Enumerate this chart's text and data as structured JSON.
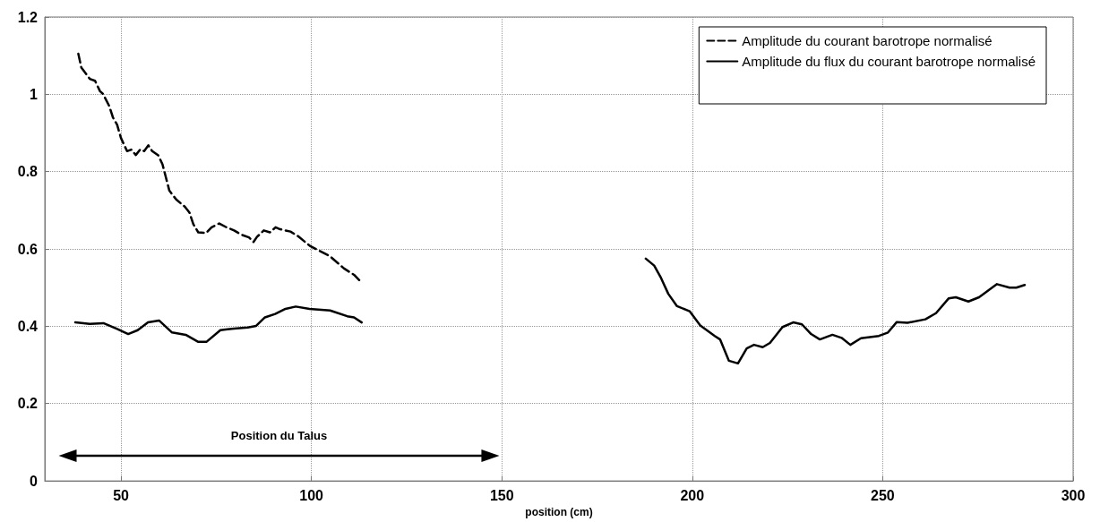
{
  "chart_data": {
    "type": "line",
    "xlabel": "position (cm)",
    "xlim": [
      30,
      300
    ],
    "xticks": [
      50,
      100,
      150,
      200,
      250,
      300
    ],
    "ylim": [
      0,
      1.2
    ],
    "yticks": [
      0,
      0.2,
      0.4,
      0.6,
      0.8,
      1,
      1.2
    ],
    "grid": true,
    "legend": "top right",
    "marker": "none",
    "annotations": [
      "Position du Talus"
    ],
    "series": [
      {
        "name": "Amplitude du courant barotrope normalisé",
        "color": "#000000",
        "line_style": "dashed",
        "x": [
          38.8,
          39.6,
          41.8,
          43.2,
          44.5,
          45.3,
          46.9,
          47.9,
          49.0,
          50.0,
          51.6,
          52.7,
          53.9,
          55.1,
          56.1,
          57.2,
          58.2,
          59.8,
          60.9,
          61.7,
          62.7,
          64.5,
          66.8,
          68.0,
          69.0,
          70.3,
          72.3,
          73.8,
          75.8,
          77.7,
          79.7,
          81.6,
          83.6,
          84.8,
          85.7,
          87.5,
          89.1,
          90.6,
          91.8,
          94.5,
          96.5,
          99.6,
          104.9,
          108.5,
          111.2,
          113.2
        ],
        "values": [
          1.105,
          1.069,
          1.04,
          1.035,
          1.008,
          1.001,
          0.97,
          0.94,
          0.921,
          0.887,
          0.853,
          0.857,
          0.843,
          0.858,
          0.853,
          0.868,
          0.853,
          0.842,
          0.819,
          0.789,
          0.751,
          0.728,
          0.709,
          0.694,
          0.664,
          0.643,
          0.641,
          0.656,
          0.666,
          0.656,
          0.648,
          0.637,
          0.63,
          0.618,
          0.631,
          0.648,
          0.643,
          0.656,
          0.651,
          0.645,
          0.633,
          0.608,
          0.581,
          0.55,
          0.533,
          0.513
        ]
      },
      {
        "name": "Amplitude du flux du courant barotrope normalisé",
        "color": "#000000",
        "line_style": "solid",
        "x": [
          38.0,
          41.8,
          45.4,
          49.0,
          51.9,
          54.4,
          57.1,
          60.0,
          63.4,
          67.0,
          70.2,
          72.5,
          76.1,
          79.7,
          83.3,
          85.5,
          87.8,
          90.5,
          93.2,
          95.9,
          99.5,
          104.9,
          109.4,
          111.2,
          113.2,
          150,
          187.8,
          190.0,
          191.8,
          193.7,
          196.0,
          199.3,
          202.1,
          205.9,
          207.3,
          209.6,
          212.0,
          214.3,
          216.2,
          218.5,
          220.4,
          223.7,
          226.5,
          228.8,
          231.2,
          233.5,
          236.8,
          239.2,
          241.5,
          244.3,
          249.0,
          251.4,
          253.7,
          256.5,
          261.2,
          264.0,
          267.3,
          269.2,
          272.5,
          275.3,
          280.0,
          283.3,
          285.1,
          287.3
        ],
        "values": [
          0.41,
          0.406,
          0.408,
          0.393,
          0.38,
          0.39,
          0.41,
          0.415,
          0.384,
          0.378,
          0.36,
          0.36,
          0.39,
          0.394,
          0.397,
          0.401,
          0.423,
          0.432,
          0.445,
          0.451,
          0.445,
          0.441,
          0.426,
          0.423,
          0.41,
          null,
          0.575,
          0.557,
          0.525,
          0.484,
          0.452,
          0.439,
          0.402,
          0.375,
          0.366,
          0.311,
          0.304,
          0.343,
          0.352,
          0.346,
          0.357,
          0.398,
          0.41,
          0.405,
          0.38,
          0.366,
          0.378,
          0.37,
          0.352,
          0.369,
          0.375,
          0.384,
          0.411,
          0.409,
          0.418,
          0.434,
          0.472,
          0.475,
          0.464,
          0.475,
          0.509,
          0.5,
          0.5,
          0.507
        ]
      },
      {
        "color": "#000000",
        "line_style": "solid",
        "marker": "triangle",
        "x": [
          36,
          147
        ],
        "values": [
          0.065,
          0.065
        ]
      }
    ]
  }
}
